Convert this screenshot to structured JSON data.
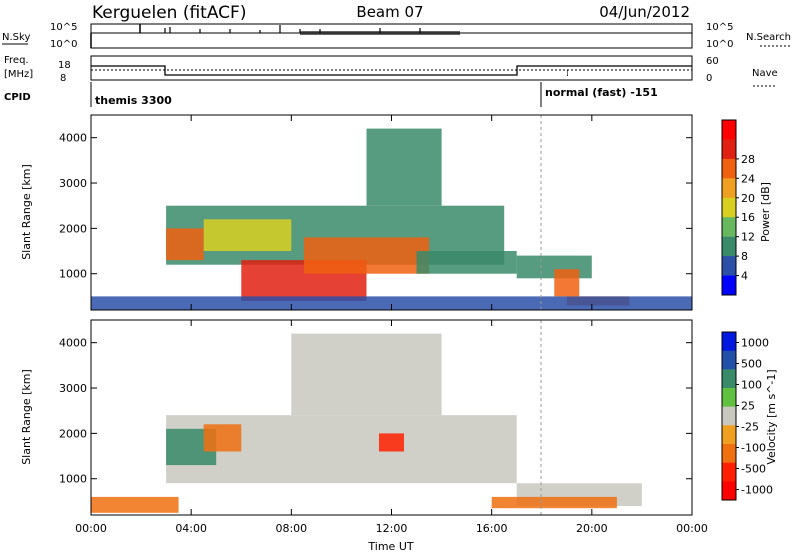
{
  "header": {
    "station": "Kerguelen (fitACF)",
    "beam": "Beam 07",
    "date": "04/Jun/2012"
  },
  "left_labels": {
    "nsky": "N.Sky",
    "freq_line1": "Freq.",
    "freq_line2": "[MHz]",
    "cpid": "CPID"
  },
  "right_labels": {
    "nsearch": "N.Search",
    "nave": "Nave"
  },
  "strip_ticks": {
    "nsky_top": "10^5",
    "nsky_bottom": "10^0",
    "freq_top": "18",
    "freq_bottom": "8",
    "nave_top": "60",
    "nave_bottom": "0"
  },
  "cpid_labels": {
    "first": "themis 3300",
    "second": "normal (fast) -151"
  },
  "colors": {
    "power_scale": [
      "#0000ff",
      "#2a50a8",
      "#3a8a6a",
      "#68b860",
      "#d8d020",
      "#f0a020",
      "#f06010",
      "#e02010",
      "#ff0000"
    ],
    "velocity_scale": [
      "#0018e0",
      "#2050a8",
      "#3a8a6a",
      "#60c040",
      "#c8c8c0",
      "#f0a020",
      "#f07010",
      "#ff2000",
      "#ff0000"
    ],
    "ground_scatter": "#c8c8c0"
  },
  "chart_data": [
    {
      "type": "heatmap",
      "panel": "power",
      "ylabel": "Slant Range [km]",
      "ylim": [
        200,
        4500
      ],
      "y_ticks": [
        "1000",
        "2000",
        "3000",
        "4000"
      ],
      "x_ticks": [
        "00:00",
        "04:00",
        "08:00",
        "12:00",
        "16:00",
        "20:00",
        "00:00"
      ],
      "colorbar": {
        "label": "Power [dB]",
        "ticks": [
          "4",
          "8",
          "12",
          "16",
          "20",
          "24",
          "28"
        ]
      },
      "regions": [
        {
          "t0": 3.0,
          "t1": 16.5,
          "r0": 1200,
          "r1": 2500,
          "value": 10
        },
        {
          "t0": 3.0,
          "t1": 4.5,
          "r0": 1300,
          "r1": 2000,
          "value": 26
        },
        {
          "t0": 6.0,
          "t1": 11.0,
          "r0": 400,
          "r1": 1300,
          "value": 28
        },
        {
          "t0": 8.5,
          "t1": 13.5,
          "r0": 1000,
          "r1": 1800,
          "value": 26
        },
        {
          "t0": 11.0,
          "t1": 14.0,
          "r0": 2500,
          "r1": 4200,
          "value": 8
        },
        {
          "t0": 4.5,
          "t1": 8.0,
          "r0": 1500,
          "r1": 2200,
          "value": 16
        },
        {
          "t0": 13.0,
          "t1": 17.0,
          "r0": 1000,
          "r1": 1500,
          "value": 10
        },
        {
          "t0": 17.0,
          "t1": 20.0,
          "r0": 900,
          "r1": 1400,
          "value": 10
        },
        {
          "t0": 18.5,
          "t1": 19.5,
          "r0": 500,
          "r1": 1100,
          "value": 26
        },
        {
          "t0": 19.0,
          "t1": 21.5,
          "r0": 300,
          "r1": 500,
          "value": 24
        },
        {
          "t0": 0.0,
          "t1": 24.0,
          "r0": 200,
          "r1": 500,
          "value": 6
        }
      ]
    },
    {
      "type": "heatmap",
      "panel": "velocity",
      "xlabel": "Time UT",
      "ylabel": "Slant Range [km]",
      "ylim": [
        200,
        4500
      ],
      "y_ticks": [
        "1000",
        "2000",
        "3000",
        "4000"
      ],
      "x_ticks": [
        "00:00",
        "04:00",
        "08:00",
        "12:00",
        "16:00",
        "20:00",
        "00:00"
      ],
      "colorbar": {
        "label": "Velocity [m s^-1]",
        "ticks": [
          "1000",
          "500",
          "100",
          "25",
          "-25",
          "-100",
          "-500",
          "-1000"
        ]
      },
      "regions": [
        {
          "t0": 3.0,
          "t1": 17.0,
          "r0": 900,
          "r1": 2400,
          "value": 0
        },
        {
          "t0": 3.0,
          "t1": 5.0,
          "r0": 1300,
          "r1": 2100,
          "value": 100
        },
        {
          "t0": 4.5,
          "t1": 6.0,
          "r0": 1600,
          "r1": 2200,
          "value": -300
        },
        {
          "t0": 11.5,
          "t1": 12.5,
          "r0": 1600,
          "r1": 2000,
          "value": -500
        },
        {
          "t0": 8.0,
          "t1": 14.0,
          "r0": 2400,
          "r1": 4200,
          "value": 0
        },
        {
          "t0": 0.0,
          "t1": 3.5,
          "r0": 250,
          "r1": 600,
          "value": -100
        },
        {
          "t0": 17.0,
          "t1": 22.0,
          "r0": 400,
          "r1": 900,
          "value": 0
        },
        {
          "t0": 16.0,
          "t1": 21.0,
          "r0": 350,
          "r1": 600,
          "value": -100
        }
      ]
    }
  ]
}
